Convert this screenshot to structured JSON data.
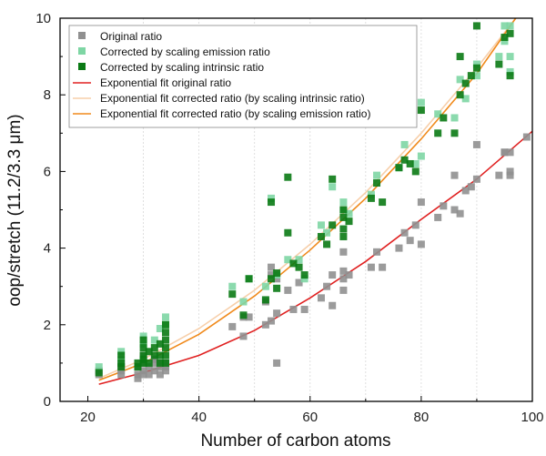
{
  "colors": {
    "original": "#909090",
    "scaled_emission": "#7ed6a4",
    "scaled_intrinsic": "#0a7a14",
    "fit_original": "#e02020",
    "fit_intrinsic": "#f7cfaa",
    "fit_emission": "#f08a1c",
    "grid": "#d8d8d8"
  },
  "chart_data": {
    "type": "scatter",
    "title": "",
    "xlabel": "Number of carbon atoms",
    "ylabel": "oop/stretch (11.2/3.3 μm)",
    "xlim": [
      15,
      100
    ],
    "ylim": [
      0,
      10
    ],
    "xticks": [
      20,
      40,
      60,
      80,
      100
    ],
    "yticks": [
      0,
      2,
      4,
      6,
      8,
      10
    ],
    "grid": "vertical dotted",
    "legend_position": "top-left",
    "series": [
      {
        "name": "Original ratio",
        "kind": "points",
        "marker": "square",
        "points": [
          [
            22,
            0.7
          ],
          [
            22,
            0.8
          ],
          [
            26,
            0.7
          ],
          [
            26,
            0.8
          ],
          [
            26,
            0.9
          ],
          [
            26,
            1.0
          ],
          [
            29,
            0.6
          ],
          [
            29,
            0.7
          ],
          [
            29,
            0.9
          ],
          [
            30,
            0.7
          ],
          [
            30,
            0.8
          ],
          [
            30,
            1.0
          ],
          [
            30,
            1.2
          ],
          [
            31,
            0.7
          ],
          [
            31,
            0.9
          ],
          [
            32,
            0.8
          ],
          [
            32,
            1.0
          ],
          [
            32,
            1.1
          ],
          [
            33,
            0.7
          ],
          [
            33,
            0.9
          ],
          [
            33,
            1.0
          ],
          [
            34,
            0.8
          ],
          [
            34,
            0.9
          ],
          [
            34,
            1.0
          ],
          [
            46,
            1.95
          ],
          [
            48,
            1.7
          ],
          [
            48,
            2.2
          ],
          [
            49,
            2.2
          ],
          [
            52,
            2.0
          ],
          [
            52,
            2.6
          ],
          [
            53,
            2.1
          ],
          [
            53,
            3.3
          ],
          [
            53,
            3.5
          ],
          [
            54,
            1.0
          ],
          [
            54,
            2.3
          ],
          [
            54,
            3.2
          ],
          [
            56,
            2.9
          ],
          [
            57,
            2.4
          ],
          [
            58,
            3.1
          ],
          [
            59,
            2.4
          ],
          [
            62,
            2.7
          ],
          [
            63,
            3.0
          ],
          [
            64,
            2.5
          ],
          [
            64,
            3.3
          ],
          [
            66,
            2.9
          ],
          [
            66,
            3.2
          ],
          [
            66,
            3.4
          ],
          [
            66,
            3.9
          ],
          [
            67,
            3.3
          ],
          [
            71,
            3.5
          ],
          [
            72,
            3.9
          ],
          [
            73,
            3.5
          ],
          [
            76,
            4.0
          ],
          [
            77,
            4.4
          ],
          [
            78,
            4.2
          ],
          [
            79,
            4.6
          ],
          [
            80,
            4.1
          ],
          [
            80,
            5.2
          ],
          [
            83,
            4.8
          ],
          [
            84,
            5.1
          ],
          [
            86,
            5.0
          ],
          [
            86,
            5.9
          ],
          [
            87,
            4.9
          ],
          [
            88,
            5.5
          ],
          [
            89,
            5.6
          ],
          [
            90,
            5.8
          ],
          [
            90,
            6.7
          ],
          [
            94,
            5.9
          ],
          [
            95,
            6.5
          ],
          [
            95,
            6.5
          ],
          [
            96,
            5.9
          ],
          [
            96,
            6.0
          ],
          [
            96,
            6.5
          ],
          [
            99,
            6.9
          ]
        ]
      },
      {
        "name": "Corrected by scaling emission ratio",
        "kind": "points",
        "marker": "square",
        "points": [
          [
            22,
            0.9
          ],
          [
            26,
            1.1
          ],
          [
            26,
            1.3
          ],
          [
            30,
            1.5
          ],
          [
            30,
            1.7
          ],
          [
            32,
            1.6
          ],
          [
            33,
            1.9
          ],
          [
            34,
            2.0
          ],
          [
            34,
            2.2
          ],
          [
            46,
            3.0
          ],
          [
            48,
            2.6
          ],
          [
            49,
            3.2
          ],
          [
            52,
            3.0
          ],
          [
            53,
            5.3
          ],
          [
            54,
            3.3
          ],
          [
            56,
            3.7
          ],
          [
            58,
            3.7
          ],
          [
            59,
            3.2
          ],
          [
            62,
            4.6
          ],
          [
            63,
            4.4
          ],
          [
            64,
            5.6
          ],
          [
            66,
            5.0
          ],
          [
            66,
            5.2
          ],
          [
            67,
            4.9
          ],
          [
            71,
            5.4
          ],
          [
            72,
            5.9
          ],
          [
            76,
            6.1
          ],
          [
            77,
            6.7
          ],
          [
            79,
            6.2
          ],
          [
            80,
            6.4
          ],
          [
            80,
            7.8
          ],
          [
            83,
            7.5
          ],
          [
            86,
            7.4
          ],
          [
            87,
            8.4
          ],
          [
            88,
            7.9
          ],
          [
            90,
            8.5
          ],
          [
            90,
            8.8
          ],
          [
            94,
            9.0
          ],
          [
            95,
            9.4
          ],
          [
            95,
            9.8
          ],
          [
            96,
            9.8
          ],
          [
            96,
            8.6
          ],
          [
            96,
            9.0
          ]
        ]
      },
      {
        "name": "Corrected by scaling intrinsic ratio",
        "kind": "points",
        "marker": "square",
        "points": [
          [
            22,
            0.75
          ],
          [
            26,
            0.9
          ],
          [
            26,
            1.0
          ],
          [
            26,
            1.2
          ],
          [
            29,
            0.9
          ],
          [
            29,
            1.0
          ],
          [
            30,
            1.0
          ],
          [
            30,
            1.1
          ],
          [
            30,
            1.2
          ],
          [
            30,
            1.4
          ],
          [
            30,
            1.6
          ],
          [
            31,
            1.0
          ],
          [
            31,
            1.3
          ],
          [
            32,
            1.2
          ],
          [
            32,
            1.4
          ],
          [
            33,
            1.0
          ],
          [
            33,
            1.2
          ],
          [
            33,
            1.5
          ],
          [
            34,
            1.0
          ],
          [
            34,
            1.2
          ],
          [
            34,
            1.4
          ],
          [
            34,
            1.6
          ],
          [
            34,
            1.8
          ],
          [
            34,
            2.0
          ],
          [
            46,
            2.8
          ],
          [
            48,
            2.25
          ],
          [
            49,
            3.2
          ],
          [
            52,
            2.65
          ],
          [
            53,
            3.2
          ],
          [
            53,
            5.2
          ],
          [
            54,
            2.95
          ],
          [
            54,
            3.35
          ],
          [
            56,
            5.85
          ],
          [
            56,
            4.4
          ],
          [
            57,
            3.6
          ],
          [
            58,
            3.5
          ],
          [
            59,
            3.3
          ],
          [
            62,
            4.3
          ],
          [
            63,
            4.1
          ],
          [
            64,
            5.8
          ],
          [
            64,
            4.6
          ],
          [
            66,
            4.3
          ],
          [
            66,
            4.5
          ],
          [
            66,
            4.8
          ],
          [
            66,
            5.0
          ],
          [
            67,
            4.7
          ],
          [
            71,
            5.3
          ],
          [
            72,
            5.7
          ],
          [
            73,
            5.2
          ],
          [
            76,
            6.1
          ],
          [
            77,
            6.3
          ],
          [
            78,
            6.2
          ],
          [
            79,
            6.0
          ],
          [
            80,
            7.6
          ],
          [
            83,
            7.0
          ],
          [
            84,
            7.4
          ],
          [
            86,
            7.0
          ],
          [
            87,
            9.0
          ],
          [
            87,
            8.0
          ],
          [
            88,
            8.3
          ],
          [
            89,
            8.5
          ],
          [
            90,
            8.7
          ],
          [
            90,
            9.8
          ],
          [
            94,
            8.8
          ],
          [
            95,
            9.5
          ],
          [
            96,
            9.6
          ],
          [
            96,
            8.5
          ]
        ]
      },
      {
        "name": "Exponential fit original ratio",
        "kind": "line",
        "points": [
          [
            22,
            0.45
          ],
          [
            30,
            0.75
          ],
          [
            40,
            1.2
          ],
          [
            50,
            1.85
          ],
          [
            60,
            2.7
          ],
          [
            70,
            3.65
          ],
          [
            80,
            4.75
          ],
          [
            90,
            5.8
          ],
          [
            100,
            7.05
          ]
        ]
      },
      {
        "name": "Exponential fit corrected ratio (by scaling intrinsic ratio)",
        "kind": "line",
        "points": [
          [
            22,
            0.6
          ],
          [
            30,
            1.1
          ],
          [
            40,
            1.9
          ],
          [
            50,
            2.9
          ],
          [
            60,
            4.1
          ],
          [
            70,
            5.45
          ],
          [
            80,
            7.0
          ],
          [
            90,
            8.7
          ],
          [
            97,
            10.0
          ]
        ]
      },
      {
        "name": "Exponential fit corrected ratio (by scaling emission ratio)",
        "kind": "line",
        "points": [
          [
            22,
            0.55
          ],
          [
            30,
            1.0
          ],
          [
            40,
            1.75
          ],
          [
            50,
            2.75
          ],
          [
            60,
            3.95
          ],
          [
            70,
            5.3
          ],
          [
            80,
            6.85
          ],
          [
            90,
            8.55
          ],
          [
            97,
            10.0
          ]
        ]
      }
    ]
  }
}
